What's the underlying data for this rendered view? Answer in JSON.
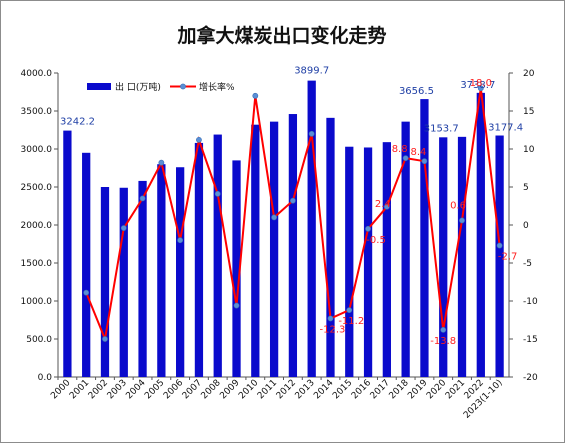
{
  "chart_data": {
    "type": "bar+line",
    "title": "加拿大煤炭出口变化走势",
    "categories": [
      "2000",
      "2001",
      "2002",
      "2003",
      "2004",
      "2005",
      "2006",
      "2007",
      "2008",
      "2009",
      "2010",
      "2011",
      "2012",
      "2013",
      "2014",
      "2015",
      "2016",
      "2017",
      "2018",
      "2019",
      "2020",
      "2021",
      "2022",
      "2023(1-10)"
    ],
    "series": [
      {
        "name": "出 口(万吨)",
        "type": "bar",
        "axis": "left",
        "color": "#0a0acc",
        "values": [
          3242.2,
          2950,
          2500,
          2490,
          2580,
          2800,
          2760,
          3080,
          3190,
          2850,
          3320,
          3360,
          3460,
          3899.7,
          3410,
          3030,
          3020,
          3090,
          3360,
          3656.5,
          3153.7,
          3160,
          3738.7,
          3177.4
        ]
      },
      {
        "name": "增长率%",
        "type": "line",
        "axis": "right",
        "color": "#ff0000",
        "values": [
          null,
          -8.9,
          -15.0,
          -0.4,
          3.5,
          8.2,
          -2.0,
          11.2,
          4.1,
          -10.6,
          17.0,
          1.0,
          3.2,
          12.0,
          -12.3,
          -11.2,
          -0.5,
          2.4,
          8.8,
          8.4,
          -13.8,
          0.6,
          18.0,
          -2.7
        ]
      }
    ],
    "data_labels": {
      "bar": [
        {
          "index": 0,
          "text": "3242.2"
        },
        {
          "index": 13,
          "text": "3899.7"
        },
        {
          "index": 19,
          "text": "3656.5"
        },
        {
          "index": 20,
          "text": "3153.7"
        },
        {
          "index": 22,
          "text": "3738.7"
        },
        {
          "index": 23,
          "text": "3177.4"
        }
      ],
      "line": [
        {
          "index": 14,
          "text": "-12.3"
        },
        {
          "index": 15,
          "text": "-11.2"
        },
        {
          "index": 16,
          "text": "-0.5"
        },
        {
          "index": 17,
          "text": "2.4"
        },
        {
          "index": 18,
          "text": "8.8"
        },
        {
          "index": 19,
          "text": "8.4"
        },
        {
          "index": 20,
          "text": "-13.8"
        },
        {
          "index": 21,
          "text": "0.6"
        },
        {
          "index": 22,
          "text": "18.0"
        },
        {
          "index": 23,
          "text": "-2.7"
        }
      ]
    },
    "y_left": {
      "min": 0,
      "max": 4000,
      "ticks": [
        "0.0",
        "500.0",
        "1000.0",
        "1500.0",
        "2000.0",
        "2500.0",
        "3000.0",
        "3500.0",
        "4000.0"
      ]
    },
    "y_right": {
      "min": -20,
      "max": 20,
      "ticks": [
        "-20",
        "-15",
        "-10",
        "-5",
        "0",
        "5",
        "10",
        "15",
        "20"
      ]
    },
    "legend": "top-left",
    "grid": false
  }
}
